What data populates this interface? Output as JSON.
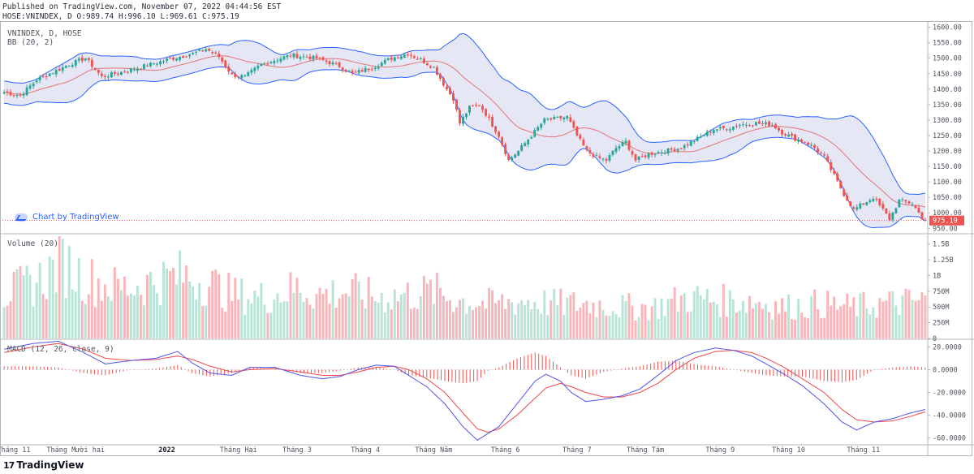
{
  "header": {
    "published": "Published on TradingView.com, November 07, 2022 04:44:56 EST",
    "ohlc": "HOSE:VNINDEX, D O:989.74 H:996.10 L:969.61 C:975.19"
  },
  "panes": {
    "main_title": "VNINDEX, D, HOSE",
    "bb_label": "BB (20, 2)",
    "volume_label": "Volume (20)",
    "macd_label": "MACD (12, 26, close, 9)"
  },
  "credit": {
    "label": "Chart by TradingView"
  },
  "footer": {
    "brand": "TradingView",
    "logo": "17"
  },
  "colors": {
    "up": "#26a69a",
    "down": "#ef5350",
    "bb_band": "#2962ff",
    "bb_fill": "#d1d4ec",
    "bb_basis": "#e57373",
    "macd": "#5055e6",
    "signal": "#f0464a",
    "vol_up": "#b9e3d6",
    "vol_down": "#f9b5b9",
    "last_price": "#ef5350"
  },
  "chart_data": [
    {
      "type": "candlestick",
      "title": "VNINDEX, D, HOSE",
      "price_axis": {
        "ticks": [
          "1600.00",
          "1550.00",
          "1500.00",
          "1450.00",
          "1400.00",
          "1350.00",
          "1300.00",
          "1250.00",
          "1200.00",
          "1150.00",
          "1100.00",
          "1050.00",
          "1000.00",
          "950.00"
        ],
        "ylim": [
          935,
          1620
        ]
      },
      "last_price": {
        "label": "975.19",
        "value": 975.19
      },
      "x_axis_labels": [
        "Tháng 11",
        "Tháng Mười hai",
        "2022",
        "Tháng Hai",
        "Tháng 3",
        "Tháng 4",
        "Tháng Năm",
        "Tháng 6",
        "Tháng 7",
        "Tháng Tám",
        "Tháng 9",
        "Tháng 10",
        "Tháng 11"
      ],
      "close_anchors": [
        [
          0,
          1390
        ],
        [
          5,
          1380
        ],
        [
          10,
          1430
        ],
        [
          20,
          1480
        ],
        [
          25,
          1500
        ],
        [
          30,
          1440
        ],
        [
          38,
          1460
        ],
        [
          45,
          1480
        ],
        [
          52,
          1500
        ],
        [
          58,
          1515
        ],
        [
          62,
          1530
        ],
        [
          66,
          1505
        ],
        [
          70,
          1445
        ],
        [
          74,
          1440
        ],
        [
          79,
          1480
        ],
        [
          88,
          1510
        ],
        [
          96,
          1500
        ],
        [
          103,
          1475
        ],
        [
          107,
          1450
        ],
        [
          113,
          1470
        ],
        [
          119,
          1500
        ],
        [
          124,
          1515
        ],
        [
          128,
          1495
        ],
        [
          132,
          1470
        ],
        [
          136,
          1400
        ],
        [
          138,
          1370
        ],
        [
          140,
          1290
        ],
        [
          143,
          1340
        ],
        [
          146,
          1350
        ],
        [
          148,
          1320
        ],
        [
          152,
          1250
        ],
        [
          155,
          1170
        ],
        [
          158,
          1200
        ],
        [
          162,
          1250
        ],
        [
          166,
          1300
        ],
        [
          170,
          1305
        ],
        [
          173,
          1310
        ],
        [
          176,
          1250
        ],
        [
          179,
          1200
        ],
        [
          182,
          1180
        ],
        [
          185,
          1170
        ],
        [
          188,
          1210
        ],
        [
          191,
          1230
        ],
        [
          194,
          1170
        ],
        [
          198,
          1190
        ],
        [
          203,
          1200
        ],
        [
          208,
          1210
        ],
        [
          213,
          1240
        ],
        [
          218,
          1270
        ],
        [
          223,
          1275
        ],
        [
          226,
          1285
        ],
        [
          231,
          1290
        ],
        [
          236,
          1285
        ],
        [
          239,
          1260
        ],
        [
          243,
          1240
        ],
        [
          246,
          1230
        ],
        [
          249,
          1210
        ],
        [
          252,
          1180
        ],
        [
          255,
          1120
        ],
        [
          258,
          1060
        ],
        [
          261,
          1010
        ],
        [
          264,
          1030
        ],
        [
          267,
          1050
        ],
        [
          270,
          1010
        ],
        [
          272,
          980
        ],
        [
          275,
          1040
        ],
        [
          279,
          1030
        ],
        [
          282,
          985
        ],
        [
          283,
          975
        ]
      ],
      "bollinger": {
        "period": 20,
        "stddev": 2
      }
    },
    {
      "type": "bar",
      "title": "Volume (20)",
      "axis_ticks": [
        "1.5B",
        "1.25B",
        "1B",
        "750M",
        "500M",
        "250M",
        "0"
      ],
      "ylim": [
        0,
        1650000000
      ],
      "volume_anchors": [
        [
          0,
          700000000
        ],
        [
          10,
          900000000
        ],
        [
          18,
          1200000000
        ],
        [
          25,
          950000000
        ],
        [
          35,
          800000000
        ],
        [
          42,
          850000000
        ],
        [
          50,
          950000000
        ],
        [
          55,
          1000000000
        ],
        [
          62,
          900000000
        ],
        [
          70,
          700000000
        ],
        [
          80,
          650000000
        ],
        [
          90,
          800000000
        ],
        [
          97,
          700000000
        ],
        [
          105,
          750000000
        ],
        [
          115,
          650000000
        ],
        [
          125,
          700000000
        ],
        [
          132,
          750000000
        ],
        [
          140,
          600000000
        ],
        [
          150,
          550000000
        ],
        [
          160,
          600000000
        ],
        [
          170,
          550000000
        ],
        [
          180,
          550000000
        ],
        [
          190,
          500000000
        ],
        [
          200,
          500000000
        ],
        [
          210,
          650000000
        ],
        [
          220,
          600000000
        ],
        [
          230,
          600000000
        ],
        [
          240,
          500000000
        ],
        [
          250,
          550000000
        ],
        [
          260,
          500000000
        ],
        [
          270,
          550000000
        ],
        [
          283,
          600000000
        ]
      ]
    },
    {
      "type": "line",
      "title": "MACD (12, 26, close, 9)",
      "axis_ticks": [
        "20.0000",
        "0.0000",
        "-20.0000",
        "-40.0000",
        "-60.0000"
      ],
      "ylim": [
        -66,
        26
      ],
      "series": [
        {
          "name": "MACD",
          "anchors": [
            [
              0,
              18
            ],
            [
              8,
              23
            ],
            [
              15,
              25
            ],
            [
              22,
              15
            ],
            [
              28,
              5
            ],
            [
              35,
              8
            ],
            [
              42,
              10
            ],
            [
              48,
              16
            ],
            [
              52,
              6
            ],
            [
              57,
              -3
            ],
            [
              63,
              -5
            ],
            [
              68,
              2
            ],
            [
              75,
              2
            ],
            [
              82,
              -5
            ],
            [
              88,
              -8
            ],
            [
              93,
              -6
            ],
            [
              98,
              0
            ],
            [
              103,
              4
            ],
            [
              108,
              3
            ],
            [
              112,
              -5
            ],
            [
              117,
              -15
            ],
            [
              122,
              -30
            ],
            [
              127,
              -50
            ],
            [
              131,
              -62
            ],
            [
              134,
              -56
            ],
            [
              137,
              -50
            ],
            [
              142,
              -30
            ],
            [
              147,
              -10
            ],
            [
              150,
              -4
            ],
            [
              154,
              -10
            ],
            [
              157,
              -20
            ],
            [
              161,
              -28
            ],
            [
              166,
              -26
            ],
            [
              171,
              -23
            ],
            [
              176,
              -17
            ],
            [
              181,
              -5
            ],
            [
              186,
              8
            ],
            [
              191,
              15
            ],
            [
              197,
              19
            ],
            [
              202,
              17
            ],
            [
              207,
              12
            ],
            [
              211,
              5
            ],
            [
              216,
              -4
            ],
            [
              221,
              -14
            ],
            [
              227,
              -30
            ],
            [
              232,
              -46
            ],
            [
              236,
              -53
            ],
            [
              241,
              -46
            ],
            [
              246,
              -43
            ],
            [
              251,
              -38
            ],
            [
              255,
              -35
            ]
          ]
        },
        {
          "name": "Signal",
          "anchors": [
            [
              0,
              15
            ],
            [
              8,
              20
            ],
            [
              15,
              23
            ],
            [
              22,
              18
            ],
            [
              28,
              10
            ],
            [
              35,
              8
            ],
            [
              42,
              9
            ],
            [
              48,
              12
            ],
            [
              52,
              9
            ],
            [
              57,
              3
            ],
            [
              63,
              -2
            ],
            [
              68,
              0
            ],
            [
              75,
              1
            ],
            [
              82,
              -2
            ],
            [
              88,
              -5
            ],
            [
              93,
              -5
            ],
            [
              98,
              -2
            ],
            [
              103,
              2
            ],
            [
              108,
              3
            ],
            [
              112,
              0
            ],
            [
              117,
              -8
            ],
            [
              122,
              -20
            ],
            [
              127,
              -38
            ],
            [
              131,
              -52
            ],
            [
              134,
              -55
            ],
            [
              137,
              -52
            ],
            [
              142,
              -40
            ],
            [
              147,
              -25
            ],
            [
              150,
              -16
            ],
            [
              154,
              -12
            ],
            [
              157,
              -15
            ],
            [
              161,
              -20
            ],
            [
              166,
              -24
            ],
            [
              171,
              -24
            ],
            [
              176,
              -20
            ],
            [
              181,
              -12
            ],
            [
              186,
              0
            ],
            [
              191,
              10
            ],
            [
              197,
              16
            ],
            [
              202,
              17
            ],
            [
              207,
              15
            ],
            [
              211,
              10
            ],
            [
              216,
              2
            ],
            [
              221,
              -8
            ],
            [
              227,
              -20
            ],
            [
              232,
              -35
            ],
            [
              236,
              -44
            ],
            [
              241,
              -46
            ],
            [
              246,
              -45
            ],
            [
              251,
              -41
            ],
            [
              255,
              -37
            ]
          ]
        }
      ],
      "histogram_color": "#ef5350"
    }
  ]
}
